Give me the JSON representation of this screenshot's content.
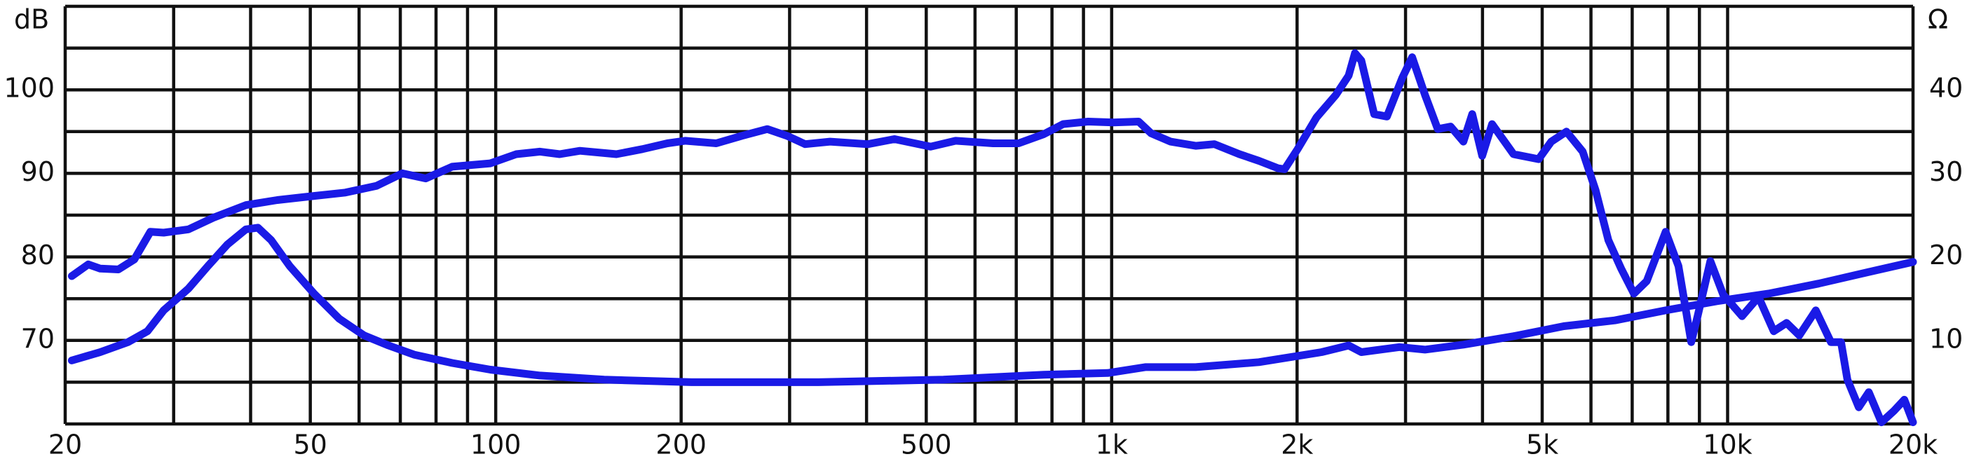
{
  "chart_data": {
    "type": "line",
    "ylabel": "dB",
    "y2label": "Ω",
    "xscale": "log",
    "xlim": [
      20,
      20000
    ],
    "xticks": [
      20,
      50,
      100,
      200,
      500,
      {
        "value": 1000,
        "label": "1k"
      },
      {
        "value": 2000,
        "label": "2k"
      },
      {
        "value": 5000,
        "label": "5k"
      },
      {
        "value": 10000,
        "label": "10k"
      },
      {
        "value": 20000,
        "label": "20k"
      }
    ],
    "xgrid": [
      20,
      30,
      40,
      50,
      60,
      70,
      80,
      90,
      100,
      200,
      300,
      400,
      500,
      600,
      700,
      800,
      900,
      1000,
      2000,
      3000,
      4000,
      5000,
      6000,
      7000,
      8000,
      9000,
      10000,
      20000
    ],
    "ylim": [
      60,
      110
    ],
    "yticks": [
      70,
      80,
      90,
      100
    ],
    "ygrid": [
      60,
      65,
      70,
      75,
      80,
      85,
      90,
      95,
      100,
      105,
      110
    ],
    "y2lim": [
      0,
      50
    ],
    "y2ticks": [
      10,
      20,
      30,
      40
    ],
    "grid_color": "#111111",
    "series": [
      {
        "color": "#1a1ae6",
        "x": [
          20.5,
          21.8,
          22.8,
          24.4,
          25.9,
          27.5,
          28.9,
          31.7,
          34.8,
          39.3,
          44.2,
          50.7,
          57,
          64,
          70.5,
          77,
          85,
          98,
          108,
          118,
          127,
          137,
          157,
          173,
          190,
          203,
          228,
          251,
          276,
          297,
          318,
          349,
          402,
          444,
          508,
          558,
          642,
          706,
          776,
          834,
          916,
          1006,
          1106,
          1159,
          1246,
          1369,
          1468,
          1612,
          1734,
          1864,
          1909,
          2004,
          2151,
          2312,
          2425,
          2483,
          2543,
          2668,
          2798,
          2962,
          3075,
          3226,
          3384,
          3550,
          3724,
          3849,
          3995,
          4146,
          4492,
          4934,
          5172,
          5474,
          5818,
          6104,
          6403,
          6717,
          7045,
          7391,
          7932,
          8321,
          8728,
          8938,
          9376,
          9835,
          10555,
          11225,
          11883,
          12466,
          13076,
          13906,
          14716,
          15282,
          15650,
          16327,
          16951,
          17776,
          18645,
          19363,
          20000
        ],
        "values": [
          77.7,
          79.1,
          78.6,
          78.5,
          79.7,
          83.0,
          82.9,
          83.3,
          84.7,
          86.2,
          86.8,
          87.3,
          87.7,
          88.5,
          90.0,
          89.4,
          90.8,
          91.2,
          92.3,
          92.6,
          92.3,
          92.7,
          92.3,
          92.9,
          93.6,
          93.9,
          93.6,
          94.5,
          95.3,
          94.5,
          93.5,
          93.8,
          93.5,
          94.1,
          93.2,
          93.9,
          93.6,
          93.6,
          94.7,
          95.9,
          96.2,
          96.1,
          96.2,
          94.8,
          93.8,
          93.3,
          93.5,
          92.3,
          91.5,
          90.6,
          90.5,
          92.9,
          96.7,
          99.4,
          101.7,
          104.4,
          103.5,
          97.1,
          96.8,
          101.4,
          103.9,
          99.4,
          95.3,
          95.6,
          93.8,
          97.1,
          92.1,
          95.9,
          92.3,
          91.7,
          93.8,
          95.0,
          92.6,
          88.0,
          82.0,
          78.6,
          75.6,
          77.1,
          83.0,
          78.9,
          69.8,
          72.9,
          79.5,
          75.5,
          72.9,
          75.2,
          71.1,
          72.1,
          70.6,
          73.6,
          69.8,
          69.8,
          65.3,
          62.0,
          63.8,
          60.2,
          61.6,
          62.9,
          60.2
        ]
      },
      {
        "color": "#1a1ae6",
        "axis": "y2",
        "x": [
          20.5,
          22.8,
          25.3,
          27.2,
          28.9,
          31.7,
          34.1,
          36.7,
          39.3,
          41.1,
          43.2,
          46.3,
          50.7,
          55.7,
          61.1,
          67,
          73.7,
          85,
          98,
          118,
          150,
          208,
          334,
          533,
          776,
          985,
          1134,
          1369,
          1734,
          2192,
          2425,
          2543,
          2932,
          3226,
          3724,
          4492,
          5420,
          6560,
          7932,
          9604,
          11657,
          14050,
          16951,
          20000
        ],
        "values": [
          7.6,
          8.6,
          9.8,
          11.1,
          13.6,
          16.2,
          18.9,
          21.5,
          23.3,
          23.5,
          22.0,
          18.9,
          15.6,
          12.6,
          10.6,
          9.4,
          8.3,
          7.3,
          6.5,
          5.8,
          5.3,
          5.0,
          5.0,
          5.3,
          5.9,
          6.1,
          6.8,
          6.8,
          7.4,
          8.6,
          9.4,
          8.6,
          9.2,
          8.9,
          9.5,
          10.5,
          11.7,
          12.4,
          13.6,
          14.7,
          15.6,
          16.8,
          18.2,
          19.4
        ]
      }
    ]
  }
}
